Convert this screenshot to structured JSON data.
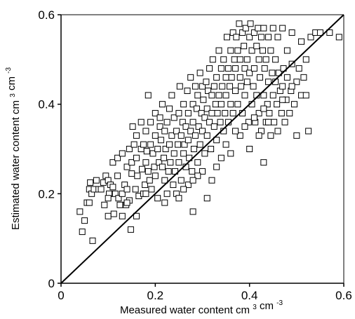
{
  "chart_data": {
    "type": "scatter",
    "title": "",
    "xlabel": {
      "main": "Measured water content",
      "unit_a": "cm",
      "unit_a_sup": "3",
      "unit_b": "cm",
      "unit_b_sup": "-3"
    },
    "ylabel": {
      "main": "Estimated water content",
      "unit_a": "cm",
      "unit_a_sup": "3",
      "unit_b": "cm",
      "unit_b_sup": "-3"
    },
    "xlim": [
      0,
      0.6
    ],
    "ylim": [
      0,
      0.6
    ],
    "x_ticks": [
      "0",
      "0.2",
      "0.4",
      "0.6"
    ],
    "y_ticks": [
      "0",
      "0.2",
      "0.4",
      "0.6"
    ],
    "grid": false,
    "legend": "none",
    "marker": "open-square",
    "reference_line": {
      "type": "1:1",
      "from": [
        0,
        0
      ],
      "to": [
        0.6,
        0.6
      ]
    },
    "colors": {
      "marker": "#000000",
      "axis": "#000000",
      "background": "#ffffff"
    },
    "series": [
      {
        "points": [
          [
            0.04,
            0.16
          ],
          [
            0.045,
            0.115
          ],
          [
            0.05,
            0.14
          ],
          [
            0.055,
            0.18
          ],
          [
            0.06,
            0.21
          ],
          [
            0.06,
            0.18
          ],
          [
            0.062,
            0.225
          ],
          [
            0.065,
            0.2
          ],
          [
            0.067,
            0.095
          ],
          [
            0.07,
            0.21
          ],
          [
            0.075,
            0.23
          ],
          [
            0.08,
            0.21
          ],
          [
            0.085,
            0.21
          ],
          [
            0.09,
            0.225
          ],
          [
            0.092,
            0.175
          ],
          [
            0.095,
            0.24
          ],
          [
            0.1,
            0.23
          ],
          [
            0.1,
            0.15
          ],
          [
            0.102,
            0.2
          ],
          [
            0.105,
            0.22
          ],
          [
            0.11,
            0.27
          ],
          [
            0.11,
            0.215
          ],
          [
            0.112,
            0.155
          ],
          [
            0.115,
            0.2
          ],
          [
            0.12,
            0.28
          ],
          [
            0.12,
            0.24
          ],
          [
            0.122,
            0.19
          ],
          [
            0.125,
            0.175
          ],
          [
            0.13,
            0.15
          ],
          [
            0.13,
            0.2
          ],
          [
            0.13,
            0.29
          ],
          [
            0.135,
            0.22
          ],
          [
            0.138,
            0.175
          ],
          [
            0.14,
            0.26
          ],
          [
            0.14,
            0.21
          ],
          [
            0.145,
            0.3
          ],
          [
            0.145,
            0.185
          ],
          [
            0.148,
            0.12
          ],
          [
            0.15,
            0.27
          ],
          [
            0.15,
            0.245
          ],
          [
            0.152,
            0.35
          ],
          [
            0.155,
            0.31
          ],
          [
            0.158,
            0.21
          ],
          [
            0.16,
            0.33
          ],
          [
            0.16,
            0.28
          ],
          [
            0.162,
            0.24
          ],
          [
            0.165,
            0.195
          ],
          [
            0.17,
            0.36
          ],
          [
            0.17,
            0.3
          ],
          [
            0.172,
            0.255
          ],
          [
            0.175,
            0.31
          ],
          [
            0.175,
            0.2
          ],
          [
            0.178,
            0.22
          ],
          [
            0.18,
            0.34
          ],
          [
            0.18,
            0.27
          ],
          [
            0.182,
            0.295
          ],
          [
            0.185,
            0.25
          ],
          [
            0.185,
            0.42
          ],
          [
            0.188,
            0.23
          ],
          [
            0.19,
            0.31
          ],
          [
            0.19,
            0.36
          ],
          [
            0.192,
            0.21
          ],
          [
            0.195,
            0.29
          ],
          [
            0.198,
            0.26
          ],
          [
            0.2,
            0.33
          ],
          [
            0.2,
            0.38
          ],
          [
            0.2,
            0.24
          ],
          [
            0.205,
            0.3
          ],
          [
            0.205,
            0.19
          ],
          [
            0.208,
            0.27
          ],
          [
            0.21,
            0.37
          ],
          [
            0.21,
            0.35
          ],
          [
            0.212,
            0.32
          ],
          [
            0.215,
            0.26
          ],
          [
            0.215,
            0.4
          ],
          [
            0.218,
            0.28
          ],
          [
            0.22,
            0.34
          ],
          [
            0.22,
            0.23
          ],
          [
            0.222,
            0.3
          ],
          [
            0.225,
            0.36
          ],
          [
            0.225,
            0.2
          ],
          [
            0.228,
            0.25
          ],
          [
            0.23,
            0.39
          ],
          [
            0.23,
            0.31
          ],
          [
            0.232,
            0.27
          ],
          [
            0.235,
            0.42
          ],
          [
            0.235,
            0.33
          ],
          [
            0.238,
            0.22
          ],
          [
            0.24,
            0.37
          ],
          [
            0.24,
            0.29
          ],
          [
            0.242,
            0.25
          ],
          [
            0.245,
            0.34
          ],
          [
            0.245,
            0.2
          ],
          [
            0.248,
            0.31
          ],
          [
            0.25,
            0.38
          ],
          [
            0.25,
            0.27
          ],
          [
            0.252,
            0.44
          ],
          [
            0.255,
            0.33
          ],
          [
            0.255,
            0.23
          ],
          [
            0.258,
            0.36
          ],
          [
            0.26,
            0.29
          ],
          [
            0.26,
            0.4
          ],
          [
            0.262,
            0.31
          ],
          [
            0.265,
            0.35
          ],
          [
            0.265,
            0.26
          ],
          [
            0.268,
            0.43
          ],
          [
            0.27,
            0.38
          ],
          [
            0.27,
            0.32
          ],
          [
            0.272,
            0.28
          ],
          [
            0.275,
            0.46
          ],
          [
            0.275,
            0.34
          ],
          [
            0.278,
            0.25
          ],
          [
            0.28,
            0.4
          ],
          [
            0.28,
            0.36
          ],
          [
            0.282,
            0.3
          ],
          [
            0.285,
            0.44
          ],
          [
            0.285,
            0.33
          ],
          [
            0.288,
            0.39
          ],
          [
            0.29,
            0.27
          ],
          [
            0.29,
            0.42
          ],
          [
            0.292,
            0.35
          ],
          [
            0.295,
            0.47
          ],
          [
            0.295,
            0.31
          ],
          [
            0.298,
            0.38
          ],
          [
            0.3,
            0.44
          ],
          [
            0.3,
            0.34
          ],
          [
            0.3,
            0.25
          ],
          [
            0.302,
            0.41
          ],
          [
            0.305,
            0.37
          ],
          [
            0.305,
            0.29
          ],
          [
            0.308,
            0.45
          ],
          [
            0.31,
            0.39
          ],
          [
            0.31,
            0.33
          ],
          [
            0.312,
            0.43
          ],
          [
            0.315,
            0.48
          ],
          [
            0.315,
            0.36
          ],
          [
            0.318,
            0.3
          ],
          [
            0.32,
            0.42
          ],
          [
            0.32,
            0.38
          ],
          [
            0.322,
            0.5
          ],
          [
            0.325,
            0.35
          ],
          [
            0.325,
            0.44
          ],
          [
            0.328,
            0.4
          ],
          [
            0.33,
            0.46
          ],
          [
            0.33,
            0.32
          ],
          [
            0.332,
            0.38
          ],
          [
            0.335,
            0.52
          ],
          [
            0.335,
            0.42
          ],
          [
            0.338,
            0.36
          ],
          [
            0.34,
            0.48
          ],
          [
            0.34,
            0.4
          ],
          [
            0.342,
            0.44
          ],
          [
            0.345,
            0.34
          ],
          [
            0.345,
            0.5
          ],
          [
            0.348,
            0.38
          ],
          [
            0.35,
            0.46
          ],
          [
            0.35,
            0.42
          ],
          [
            0.352,
            0.55
          ],
          [
            0.355,
            0.36
          ],
          [
            0.355,
            0.48
          ],
          [
            0.358,
            0.44
          ],
          [
            0.36,
            0.4
          ],
          [
            0.36,
            0.52
          ],
          [
            0.362,
            0.46
          ],
          [
            0.365,
            0.38
          ],
          [
            0.365,
            0.56
          ],
          [
            0.368,
            0.5
          ],
          [
            0.37,
            0.43
          ],
          [
            0.37,
            0.48
          ],
          [
            0.372,
            0.55
          ],
          [
            0.375,
            0.4
          ],
          [
            0.375,
            0.52
          ],
          [
            0.378,
            0.58
          ],
          [
            0.38,
            0.46
          ],
          [
            0.38,
            0.5
          ],
          [
            0.382,
            0.44
          ],
          [
            0.385,
            0.56
          ],
          [
            0.385,
            0.38
          ],
          [
            0.388,
            0.53
          ],
          [
            0.39,
            0.48
          ],
          [
            0.39,
            0.42
          ],
          [
            0.392,
            0.57
          ],
          [
            0.395,
            0.5
          ],
          [
            0.395,
            0.45
          ],
          [
            0.398,
            0.36
          ],
          [
            0.4,
            0.55
          ],
          [
            0.4,
            0.47
          ],
          [
            0.402,
            0.58
          ],
          [
            0.405,
            0.4
          ],
          [
            0.405,
            0.52
          ],
          [
            0.408,
            0.44
          ],
          [
            0.41,
            0.56
          ],
          [
            0.41,
            0.48
          ],
          [
            0.412,
            0.36
          ],
          [
            0.415,
            0.53
          ],
          [
            0.415,
            0.42
          ],
          [
            0.418,
            0.57
          ],
          [
            0.42,
            0.5
          ],
          [
            0.42,
            0.38
          ],
          [
            0.422,
            0.46
          ],
          [
            0.425,
            0.55
          ],
          [
            0.425,
            0.34
          ],
          [
            0.428,
            0.52
          ],
          [
            0.43,
            0.42
          ],
          [
            0.43,
            0.57
          ],
          [
            0.432,
            0.48
          ],
          [
            0.435,
            0.36
          ],
          [
            0.435,
            0.5
          ],
          [
            0.438,
            0.4
          ],
          [
            0.44,
            0.55
          ],
          [
            0.44,
            0.45
          ],
          [
            0.442,
            0.38
          ],
          [
            0.445,
            0.52
          ],
          [
            0.445,
            0.33
          ],
          [
            0.448,
            0.47
          ],
          [
            0.45,
            0.57
          ],
          [
            0.45,
            0.42
          ],
          [
            0.452,
            0.36
          ],
          [
            0.455,
            0.5
          ],
          [
            0.455,
            0.45
          ],
          [
            0.458,
            0.4
          ],
          [
            0.46,
            0.55
          ],
          [
            0.46,
            0.34
          ],
          [
            0.462,
            0.47
          ],
          [
            0.465,
            0.43
          ],
          [
            0.468,
            0.38
          ],
          [
            0.47,
            0.57
          ],
          [
            0.47,
            0.44
          ],
          [
            0.472,
            0.48
          ],
          [
            0.475,
            0.36
          ],
          [
            0.478,
            0.41
          ],
          [
            0.48,
            0.52
          ],
          [
            0.48,
            0.46
          ],
          [
            0.485,
            0.38
          ],
          [
            0.488,
            0.43
          ],
          [
            0.49,
            0.56
          ],
          [
            0.49,
            0.49
          ],
          [
            0.495,
            0.4
          ],
          [
            0.5,
            0.45
          ],
          [
            0.5,
            0.33
          ],
          [
            0.505,
            0.48
          ],
          [
            0.51,
            0.42
          ],
          [
            0.51,
            0.54
          ],
          [
            0.515,
            0.46
          ],
          [
            0.52,
            0.5
          ],
          [
            0.52,
            0.42
          ],
          [
            0.525,
            0.34
          ],
          [
            0.53,
            0.55
          ],
          [
            0.54,
            0.56
          ],
          [
            0.55,
            0.56
          ],
          [
            0.57,
            0.56
          ],
          [
            0.59,
            0.55
          ],
          [
            0.31,
            0.19
          ],
          [
            0.32,
            0.23
          ],
          [
            0.43,
            0.27
          ],
          [
            0.4,
            0.3
          ],
          [
            0.27,
            0.22
          ],
          [
            0.25,
            0.19
          ],
          [
            0.33,
            0.26
          ],
          [
            0.36,
            0.29
          ],
          [
            0.38,
            0.33
          ],
          [
            0.35,
            0.31
          ],
          [
            0.42,
            0.33
          ],
          [
            0.44,
            0.36
          ],
          [
            0.34,
            0.28
          ],
          [
            0.29,
            0.24
          ],
          [
            0.26,
            0.21
          ],
          [
            0.28,
            0.23
          ],
          [
            0.37,
            0.34
          ],
          [
            0.39,
            0.35
          ],
          [
            0.41,
            0.37
          ],
          [
            0.43,
            0.39
          ],
          [
            0.47,
            0.41
          ],
          [
            0.49,
            0.44
          ],
          [
            0.28,
            0.16
          ],
          [
            0.22,
            0.18
          ],
          [
            0.18,
            0.2
          ],
          [
            0.16,
            0.15
          ],
          [
            0.14,
            0.18
          ],
          [
            0.1,
            0.19
          ]
        ]
      }
    ]
  }
}
